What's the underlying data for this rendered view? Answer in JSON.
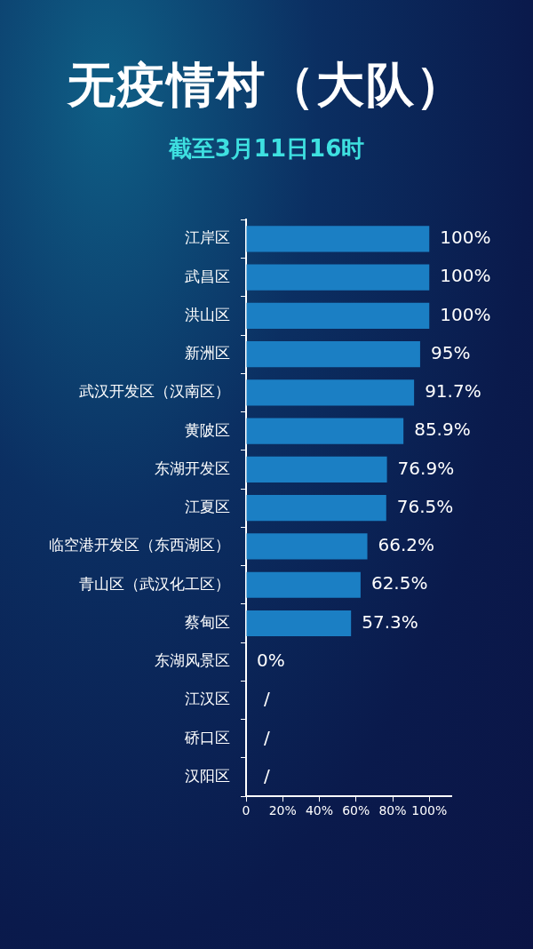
{
  "chart_data": {
    "type": "bar",
    "orientation": "horizontal",
    "title": "无疫情村（大队）",
    "subtitle": "截至3月11日16时",
    "categories": [
      "江岸区",
      "武昌区",
      "洪山区",
      "新洲区",
      "武汉开发区（汉南区）",
      "黄陂区",
      "东湖开发区",
      "江夏区",
      "临空港开发区（东西湖区）",
      "青山区（武汉化工区）",
      "蔡甸区",
      "东湖风景区",
      "江汉区",
      "硚口区",
      "汉阳区"
    ],
    "values": [
      100,
      100,
      100,
      95,
      91.7,
      85.9,
      76.9,
      76.5,
      66.2,
      62.5,
      57.3,
      0,
      null,
      null,
      null
    ],
    "value_labels": [
      "100%",
      "100%",
      "100%",
      "95%",
      "91.7%",
      "85.9%",
      "76.9%",
      "76.5%",
      "66.2%",
      "62.5%",
      "57.3%",
      "0%",
      "/",
      "/",
      "/"
    ],
    "color": "#1b7fc4",
    "xlim": [
      0,
      112
    ],
    "xticks": [
      {
        "value": 0,
        "label": "0"
      },
      {
        "value": 20,
        "label": "20%"
      },
      {
        "value": 40,
        "label": "40%"
      },
      {
        "value": 60,
        "label": "60%"
      },
      {
        "value": 80,
        "label": "80%"
      },
      {
        "value": 100,
        "label": "100%"
      }
    ]
  }
}
